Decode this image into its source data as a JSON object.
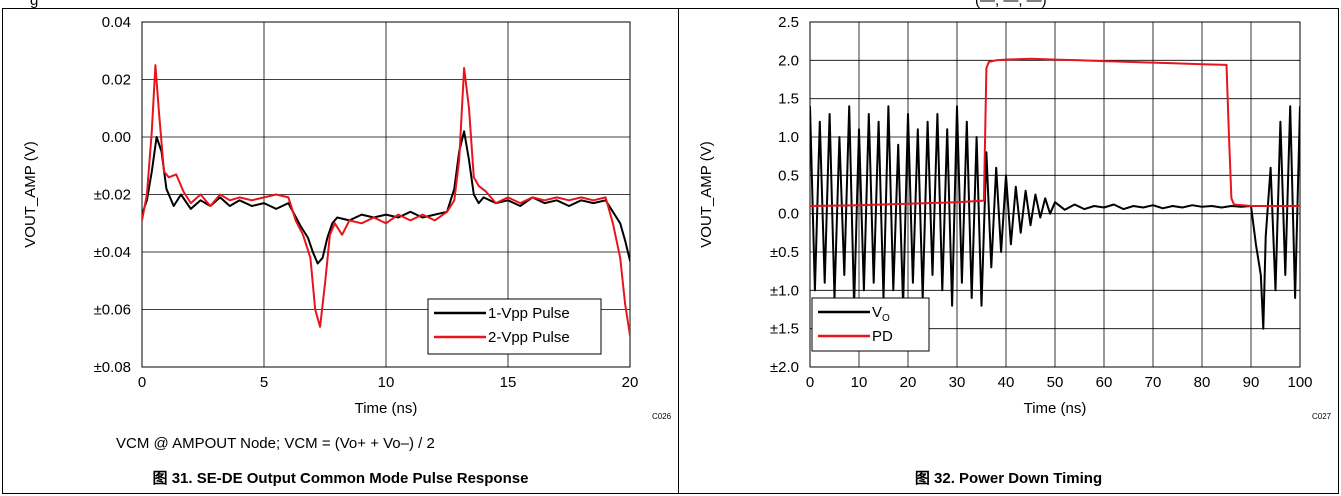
{
  "top_strip": {
    "left_text": "g",
    "right_text": "(—, —, —)"
  },
  "charts": [
    {
      "caption": "图 31. SE-DE Output Common Mode Pulse Response",
      "note": "VCM @ AMPOUT Node; VCM = (Vo+ + Vo–) / 2",
      "code": "C026"
    },
    {
      "caption": "图 32. Power Down Timing",
      "code": "C027"
    }
  ],
  "chart_data": [
    {
      "type": "line",
      "xlabel": "Time (ns)",
      "ylabel": "VOUT_AMP (V)",
      "xlim": [
        0,
        20
      ],
      "ylim": [
        -0.08,
        0.04
      ],
      "xticks": [
        "0",
        "5",
        "10",
        "15",
        "20"
      ],
      "xtick_values": [
        0,
        5,
        10,
        15,
        20
      ],
      "yticks": [
        "0.04",
        "0.02",
        "0.00",
        "±0.02",
        "±0.04",
        "±0.06",
        "±0.08"
      ],
      "ytick_values": [
        0.04,
        0.02,
        0.0,
        -0.02,
        -0.04,
        -0.06,
        -0.08
      ],
      "grid": true,
      "legend_position": "bottom-right",
      "series": [
        {
          "name": "1-Vpp Pulse",
          "color": "#000000",
          "x": [
            0,
            0.2,
            0.4,
            0.6,
            0.8,
            1.0,
            1.3,
            1.6,
            2.0,
            2.4,
            2.8,
            3.2,
            3.6,
            4.0,
            4.5,
            5.0,
            5.5,
            6.0,
            6.5,
            6.8,
            7.0,
            7.2,
            7.4,
            7.6,
            7.8,
            8.0,
            8.5,
            9.0,
            9.5,
            10.0,
            10.5,
            11.0,
            11.5,
            12.0,
            12.5,
            12.8,
            13.0,
            13.2,
            13.4,
            13.6,
            13.8,
            14.0,
            14.5,
            15.0,
            15.5,
            16.0,
            16.5,
            17.0,
            17.5,
            18.0,
            18.5,
            19.0,
            19.3,
            19.6,
            19.8,
            20.0,
            20.1
          ],
          "y": [
            -0.027,
            -0.022,
            -0.012,
            0.0,
            -0.005,
            -0.018,
            -0.024,
            -0.02,
            -0.025,
            -0.022,
            -0.024,
            -0.021,
            -0.024,
            -0.022,
            -0.024,
            -0.023,
            -0.025,
            -0.023,
            -0.031,
            -0.035,
            -0.04,
            -0.044,
            -0.042,
            -0.035,
            -0.03,
            -0.028,
            -0.029,
            -0.027,
            -0.028,
            -0.027,
            -0.028,
            -0.026,
            -0.028,
            -0.027,
            -0.026,
            -0.018,
            -0.005,
            0.002,
            -0.008,
            -0.02,
            -0.023,
            -0.021,
            -0.023,
            -0.022,
            -0.024,
            -0.021,
            -0.023,
            -0.022,
            -0.024,
            -0.022,
            -0.023,
            -0.022,
            -0.026,
            -0.03,
            -0.036,
            -0.043,
            -0.039
          ]
        },
        {
          "name": "2-Vpp Pulse",
          "color": "#e8141c",
          "x": [
            0,
            0.2,
            0.4,
            0.55,
            0.7,
            0.9,
            1.1,
            1.4,
            1.7,
            2.0,
            2.4,
            2.8,
            3.2,
            3.6,
            4.0,
            4.5,
            5.0,
            5.5,
            6.0,
            6.3,
            6.6,
            6.9,
            7.1,
            7.3,
            7.5,
            7.7,
            7.9,
            8.2,
            8.5,
            9.0,
            9.5,
            10.0,
            10.5,
            11.0,
            11.5,
            12.0,
            12.5,
            12.8,
            13.0,
            13.2,
            13.4,
            13.6,
            13.8,
            14.1,
            14.5,
            15.0,
            15.5,
            16.0,
            16.5,
            17.0,
            17.5,
            18.0,
            18.5,
            19.0,
            19.3,
            19.6,
            19.8,
            20.0,
            20.1
          ],
          "y": [
            -0.029,
            -0.02,
            0.002,
            0.025,
            0.008,
            -0.012,
            -0.014,
            -0.013,
            -0.019,
            -0.023,
            -0.02,
            -0.024,
            -0.02,
            -0.022,
            -0.021,
            -0.022,
            -0.021,
            -0.02,
            -0.021,
            -0.029,
            -0.034,
            -0.042,
            -0.06,
            -0.066,
            -0.051,
            -0.034,
            -0.03,
            -0.034,
            -0.029,
            -0.03,
            -0.028,
            -0.03,
            -0.027,
            -0.029,
            -0.027,
            -0.029,
            -0.026,
            -0.022,
            -0.008,
            0.024,
            0.01,
            -0.014,
            -0.017,
            -0.019,
            -0.023,
            -0.021,
            -0.023,
            -0.021,
            -0.022,
            -0.021,
            -0.022,
            -0.021,
            -0.022,
            -0.021,
            -0.03,
            -0.042,
            -0.058,
            -0.069,
            -0.055
          ]
        }
      ]
    },
    {
      "type": "line",
      "xlabel": "Time (ns)",
      "ylabel": "VOUT_AMP (V)",
      "xlim": [
        0,
        100
      ],
      "ylim": [
        -2.0,
        2.5
      ],
      "xticks": [
        "0",
        "10",
        "20",
        "30",
        "40",
        "50",
        "60",
        "70",
        "80",
        "90",
        "100"
      ],
      "xtick_values": [
        0,
        10,
        20,
        30,
        40,
        50,
        60,
        70,
        80,
        90,
        100
      ],
      "yticks": [
        "2.5",
        "2.0",
        "1.5",
        "1.0",
        "0.5",
        "0.0",
        "±0.5",
        "±1.0",
        "±1.5",
        "±2.0"
      ],
      "ytick_values": [
        2.5,
        2.0,
        1.5,
        1.0,
        0.5,
        0.0,
        -0.5,
        -1.0,
        -1.5,
        -2.0
      ],
      "grid": true,
      "legend_position": "bottom-left",
      "series": [
        {
          "name": "V",
          "name_subscript": "O",
          "color": "#000000",
          "x": [
            0,
            1,
            2,
            3,
            4,
            5,
            6,
            7,
            8,
            9,
            10,
            11,
            12,
            13,
            14,
            15,
            16,
            17,
            18,
            19,
            20,
            21,
            22,
            23,
            24,
            25,
            26,
            27,
            28,
            29,
            30,
            31,
            32,
            33,
            34,
            35,
            36,
            37,
            38,
            39,
            40,
            41,
            42,
            43,
            44,
            45,
            46,
            47,
            48,
            49,
            50,
            52,
            54,
            56,
            58,
            60,
            62,
            64,
            66,
            68,
            70,
            72,
            74,
            76,
            78,
            80,
            82,
            84,
            86,
            88,
            90,
            91,
            92,
            92.5,
            93,
            94,
            95,
            96,
            97,
            98,
            99,
            100
          ],
          "y": [
            1.4,
            -1.0,
            1.2,
            -0.9,
            1.3,
            -1.1,
            1.0,
            -0.8,
            1.4,
            -1.2,
            1.1,
            -1.0,
            1.3,
            -0.9,
            1.2,
            -1.1,
            1.4,
            -1.0,
            0.9,
            -1.2,
            1.3,
            -0.9,
            1.1,
            -1.1,
            1.2,
            -0.8,
            1.3,
            -1.0,
            1.1,
            -1.2,
            1.4,
            -0.9,
            1.2,
            -1.1,
            1.0,
            -1.2,
            0.8,
            -0.7,
            0.6,
            -0.5,
            0.5,
            -0.4,
            0.35,
            -0.25,
            0.3,
            -0.15,
            0.25,
            -0.05,
            0.2,
            0.0,
            0.15,
            0.05,
            0.12,
            0.06,
            0.1,
            0.08,
            0.12,
            0.06,
            0.1,
            0.08,
            0.11,
            0.07,
            0.1,
            0.08,
            0.11,
            0.09,
            0.1,
            0.08,
            0.1,
            0.09,
            0.1,
            -0.4,
            -0.8,
            -1.5,
            -0.3,
            0.6,
            -1.0,
            1.2,
            -0.8,
            1.4,
            -1.1,
            1.4
          ]
        },
        {
          "name": "PD",
          "color": "#e8141c",
          "x": [
            0,
            10,
            20,
            30,
            35.5,
            36,
            36.5,
            38,
            40,
            45,
            50,
            55,
            60,
            65,
            70,
            75,
            80,
            85,
            85.5,
            86,
            86.5,
            90,
            95,
            100
          ],
          "y": [
            0.1,
            0.11,
            0.13,
            0.15,
            0.17,
            1.9,
            1.98,
            2.0,
            2.01,
            2.02,
            2.01,
            2.0,
            1.99,
            1.98,
            1.97,
            1.96,
            1.95,
            1.94,
            1.0,
            0.2,
            0.12,
            0.1,
            0.1,
            0.1
          ]
        }
      ]
    }
  ]
}
